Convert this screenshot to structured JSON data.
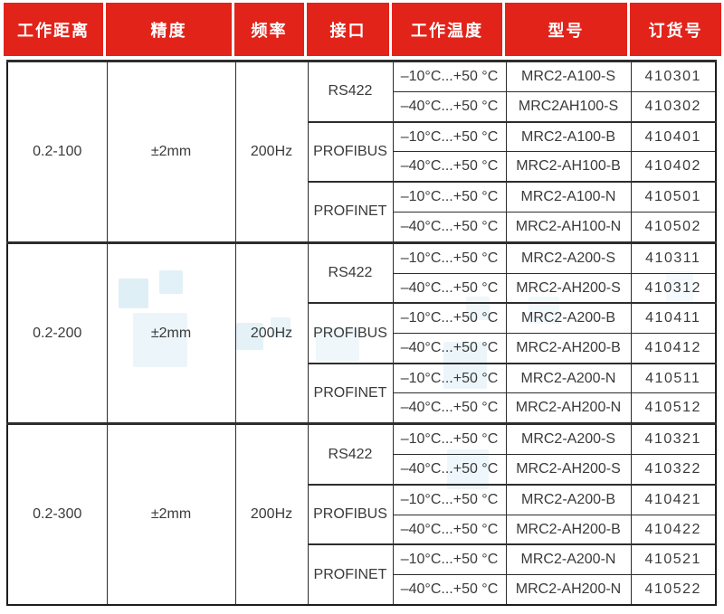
{
  "colors": {
    "header_bg": "#e2231a",
    "header_text": "#ffffff",
    "body_text": "#3a3a3a",
    "grid_border": "#2d2d2d",
    "watermark": "#bfe0ee"
  },
  "table": {
    "columns": [
      {
        "key": "distance",
        "label": "工作距离"
      },
      {
        "key": "accuracy",
        "label": "精度"
      },
      {
        "key": "frequency",
        "label": "频率"
      },
      {
        "key": "interface",
        "label": "接口"
      },
      {
        "key": "temperature",
        "label": "工作温度"
      },
      {
        "key": "model",
        "label": "型号"
      },
      {
        "key": "order_no",
        "label": "订货号"
      }
    ],
    "groups": [
      {
        "distance": "0.2-100",
        "accuracy": "±2mm",
        "frequency": "200Hz",
        "interfaces": [
          {
            "name": "RS422",
            "rows": [
              {
                "temperature": "–10°C...+50 °C",
                "model": "MRC2-A100-S",
                "order_no": "410301"
              },
              {
                "temperature": "–40°C...+50 °C",
                "model": "MRC2AH100-S",
                "order_no": "410302"
              }
            ]
          },
          {
            "name": "PROFIBUS",
            "rows": [
              {
                "temperature": "–10°C...+50 °C",
                "model": "MRC2-A100-B",
                "order_no": "410401"
              },
              {
                "temperature": "–40°C...+50 °C",
                "model": "MRC2-AH100-B",
                "order_no": "410402"
              }
            ]
          },
          {
            "name": "PROFINET",
            "rows": [
              {
                "temperature": "–10°C...+50 °C",
                "model": "MRC2-A100-N",
                "order_no": "410501"
              },
              {
                "temperature": "–40°C...+50 °C",
                "model": "MRC2-AH100-N",
                "order_no": "410502"
              }
            ]
          }
        ]
      },
      {
        "distance": "0.2-200",
        "accuracy": "±2mm",
        "frequency": "200Hz",
        "interfaces": [
          {
            "name": "RS422",
            "rows": [
              {
                "temperature": "–10°C...+50 °C",
                "model": "MRC2-A200-S",
                "order_no": "410311"
              },
              {
                "temperature": "–40°C...+50 °C",
                "model": "MRC2-AH200-S",
                "order_no": "410312"
              }
            ]
          },
          {
            "name": "PROFIBUS",
            "rows": [
              {
                "temperature": "–10°C...+50 °C",
                "model": "MRC2-A200-B",
                "order_no": "410411"
              },
              {
                "temperature": "–40°C...+50 °C",
                "model": "MRC2-AH200-B",
                "order_no": "410412"
              }
            ]
          },
          {
            "name": "PROFINET",
            "rows": [
              {
                "temperature": "–10°C...+50 °C",
                "model": "MRC2-A200-N",
                "order_no": "410511"
              },
              {
                "temperature": "–40°C...+50 °C",
                "model": "MRC2-AH200-N",
                "order_no": "410512"
              }
            ]
          }
        ]
      },
      {
        "distance": "0.2-300",
        "accuracy": "±2mm",
        "frequency": "200Hz",
        "interfaces": [
          {
            "name": "RS422",
            "rows": [
              {
                "temperature": "–10°C...+50 °C",
                "model": "MRC2-A200-S",
                "order_no": "410321"
              },
              {
                "temperature": "–40°C...+50 °C",
                "model": "MRC2-AH200-S",
                "order_no": "410322"
              }
            ]
          },
          {
            "name": "PROFIBUS",
            "rows": [
              {
                "temperature": "–10°C...+50 °C",
                "model": "MRC2-A200-B",
                "order_no": "410421"
              },
              {
                "temperature": "–40°C...+50 °C",
                "model": "MRC2-AH200-B",
                "order_no": "410422"
              }
            ]
          },
          {
            "name": "PROFINET",
            "rows": [
              {
                "temperature": "–10°C...+50 °C",
                "model": "MRC2-A200-N",
                "order_no": "410521"
              },
              {
                "temperature": "–40°C...+50 °C",
                "model": "MRC2-AH200-N",
                "order_no": "410522"
              }
            ]
          }
        ]
      }
    ]
  }
}
